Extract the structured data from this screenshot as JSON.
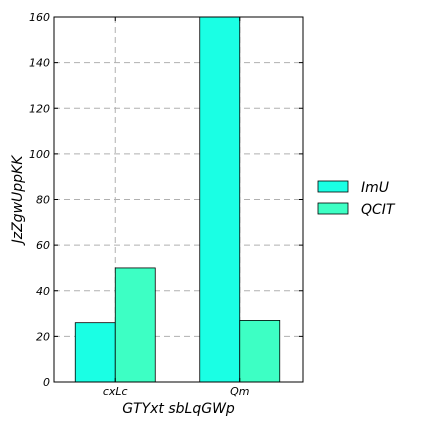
{
  "chart_data": {
    "type": "bar",
    "categories": [
      "cxLc",
      "Qm"
    ],
    "series": [
      {
        "name": "ImU",
        "values": [
          26,
          160
        ],
        "color": "#1affe4"
      },
      {
        "name": "QCIT",
        "values": [
          50,
          27
        ],
        "color": "#3dffc4"
      }
    ],
    "xlabel": "GTYxt sbLqGWp",
    "ylabel": "JzZgwUppKK",
    "ylim": [
      0,
      160
    ],
    "yticks": [
      0,
      20,
      40,
      60,
      80,
      100,
      120,
      140,
      160
    ],
    "grid": true,
    "grid_style": "dashed",
    "legend_position": "outside-right",
    "title": ""
  }
}
